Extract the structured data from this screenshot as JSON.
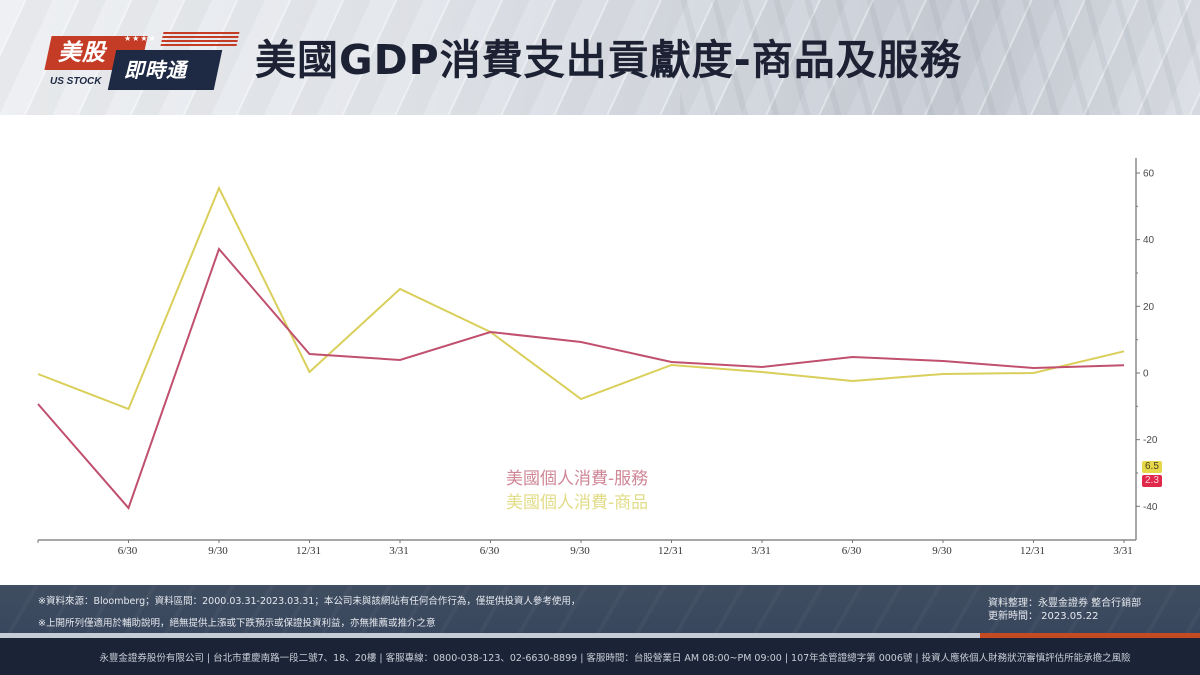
{
  "header": {
    "logo": {
      "top_text": "美股",
      "bottom_text": "即時通",
      "sub_text": "US STOCK",
      "stars": "★★★★"
    },
    "title": "美國GDP消費支出貢獻度-商品及服務"
  },
  "chart_data": {
    "type": "line",
    "title": "美國GDP消費支出貢獻度-商品及服務",
    "xlabel": "",
    "ylabel": "",
    "x": [
      "",
      "6/30",
      "9/30",
      "12/31",
      "3/31",
      "6/30",
      "9/30",
      "12/31",
      "3/31",
      "6/30",
      "9/30",
      "12/31",
      "3/31"
    ],
    "categories": [
      "6/30",
      "9/30",
      "12/31",
      "3/31",
      "6/30",
      "9/30",
      "12/31",
      "3/31",
      "6/30",
      "9/30",
      "12/31",
      "3/31"
    ],
    "y_ticks": [
      60,
      40,
      20,
      0,
      -20,
      -40
    ],
    "ylim": [
      -50,
      65
    ],
    "y_axis_position": "right",
    "grid": false,
    "legend_position": "center-bottom",
    "series": [
      {
        "name": "美國個人消費-服務",
        "color": "#c0506e",
        "values": [
          -9.3,
          -40.5,
          37.2,
          5.7,
          3.9,
          12.3,
          9.3,
          3.3,
          1.8,
          4.8,
          3.6,
          1.5,
          2.3
        ],
        "last_value_label": "2.3"
      },
      {
        "name": "美國個人消費-商品",
        "color": "#d9cf5a",
        "values": [
          -0.3,
          -10.8,
          55.5,
          0.3,
          25.2,
          12.3,
          -7.8,
          2.4,
          0.3,
          -2.4,
          -0.3,
          0.0,
          6.5
        ],
        "last_value_label": "6.5"
      }
    ]
  },
  "legend": {
    "services": "美國個人消費-服務",
    "goods": "美國個人消費-商品"
  },
  "tags": {
    "goods_last": "6.5",
    "services_last": "2.3"
  },
  "footer": {
    "disclaimer_1": "※資料來源：Bloomberg；資料區間：2000.03.31-2023.03.31；本公司未與該網站有任何合作行為，僅提供投資人參考使用，",
    "disclaimer_2": "※上開所列僅適用於輔助說明，絕無提供上漲或下跌預示或保證投資利益，亦無推薦或推介之意",
    "compiled_by": "資料整理：永豐金證券  整合行銷部",
    "updated": "更新時間：  2023.05.22",
    "company_line": "永豐金證券股份有限公司 | 台北市重慶南路一段二號7、18、20樓 | 客服專線：0800-038-123、02-6630-8899 | 客服時間：台股營業日 AM 08:00~PM 09:00  | 107年金管證總字第 0006號 | 投資人應依個人財務狀況審慎評估所能承擔之風險"
  }
}
